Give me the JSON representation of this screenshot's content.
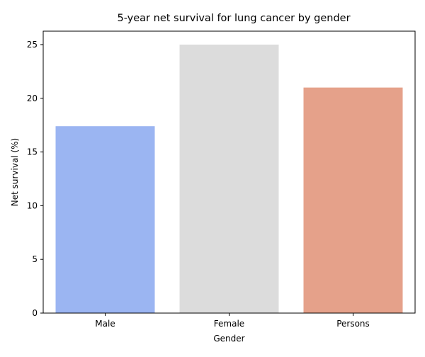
{
  "chart_data": {
    "type": "bar",
    "title": "5-year net survival for lung cancer by gender",
    "xlabel": "Gender",
    "ylabel": "Net survival (%)",
    "categories": [
      "Male",
      "Female",
      "Persons"
    ],
    "values": [
      17.4,
      25.0,
      21.0
    ],
    "colors": [
      "#9bb5f2",
      "#dcdcdc",
      "#e5a18a"
    ],
    "ylim": [
      0,
      26.25
    ],
    "yticks": [
      0,
      5,
      10,
      15,
      20,
      25
    ],
    "grid": false,
    "legend": "none"
  }
}
